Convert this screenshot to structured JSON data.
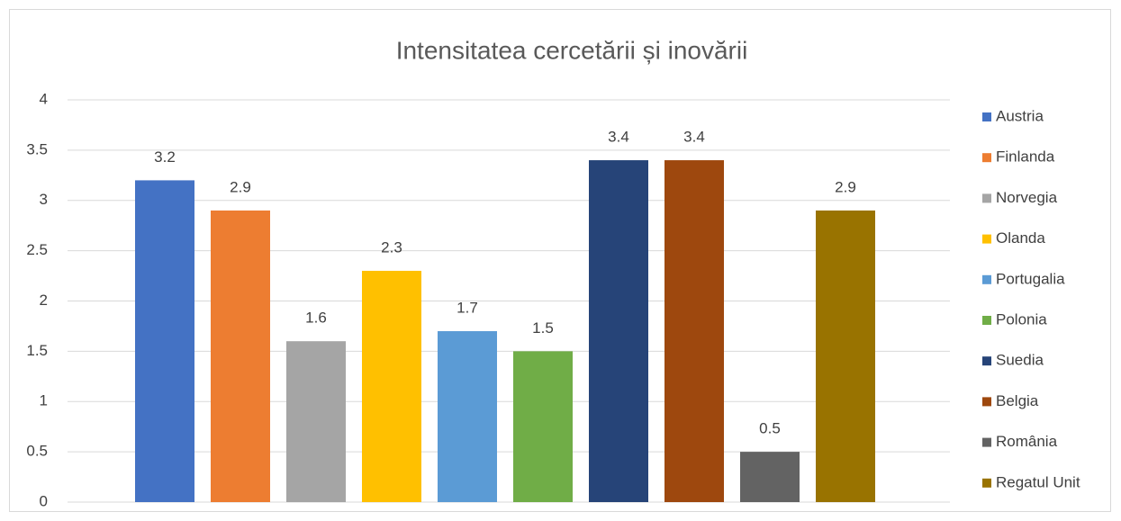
{
  "chart_data": {
    "type": "bar",
    "title": "Intensitatea cercetării și inovării",
    "series": [
      {
        "name": "Austria",
        "color": "#4472c4",
        "values": [
          3.2
        ]
      },
      {
        "name": "Finlanda",
        "color": "#ed7d31",
        "values": [
          2.9
        ]
      },
      {
        "name": "Norvegia",
        "color": "#a5a5a5",
        "values": [
          1.6
        ]
      },
      {
        "name": "Olanda",
        "color": "#ffc000",
        "values": [
          2.3
        ]
      },
      {
        "name": "Portugalia",
        "color": "#5b9bd5",
        "values": [
          1.7
        ]
      },
      {
        "name": "Polonia",
        "color": "#70ad47",
        "values": [
          1.5
        ]
      },
      {
        "name": "Suedia",
        "color": "#264478",
        "values": [
          3.4
        ]
      },
      {
        "name": "Belgia",
        "color": "#9e480e",
        "values": [
          3.4
        ]
      },
      {
        "name": "România",
        "color": "#636363",
        "values": [
          0.5
        ]
      },
      {
        "name": "Regatul Unit",
        "color": "#997300",
        "values": [
          2.9
        ]
      }
    ],
    "ylim": [
      0,
      4
    ],
    "yticks": [
      0,
      0.5,
      1,
      1.5,
      2,
      2.5,
      3,
      3.5,
      4
    ],
    "grid": true,
    "legend": "right"
  }
}
